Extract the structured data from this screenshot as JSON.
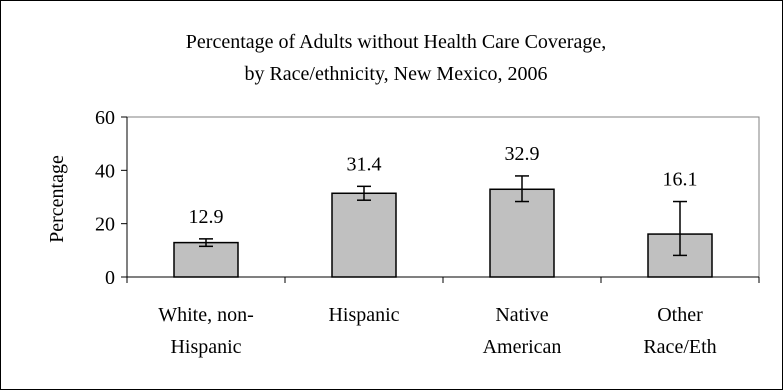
{
  "chart_data": {
    "type": "bar",
    "title_lines": [
      "Percentage of Adults without Health Care Coverage,",
      "by Race/ethnicity, New Mexico, 2006"
    ],
    "xlabel": "",
    "ylabel": "Percentage",
    "ylim": [
      0,
      60
    ],
    "yticks": [
      0,
      20,
      40,
      60
    ],
    "grid": false,
    "categories": [
      [
        "White, non-",
        "Hispanic"
      ],
      [
        "Hispanic"
      ],
      [
        "Native",
        "American"
      ],
      [
        "Other",
        "Race/Eth"
      ]
    ],
    "values": [
      12.9,
      31.4,
      32.9,
      16.1
    ],
    "value_labels": [
      "12.9",
      "31.4",
      "32.9",
      "16.1"
    ],
    "error_low": [
      11.5,
      28.8,
      28.3,
      8.1
    ],
    "error_high": [
      14.3,
      34.0,
      37.9,
      28.3
    ],
    "colors": {
      "bar_fill": "#c0c0c0",
      "bar_stroke": "#000000",
      "plot_border": "#808080"
    }
  }
}
